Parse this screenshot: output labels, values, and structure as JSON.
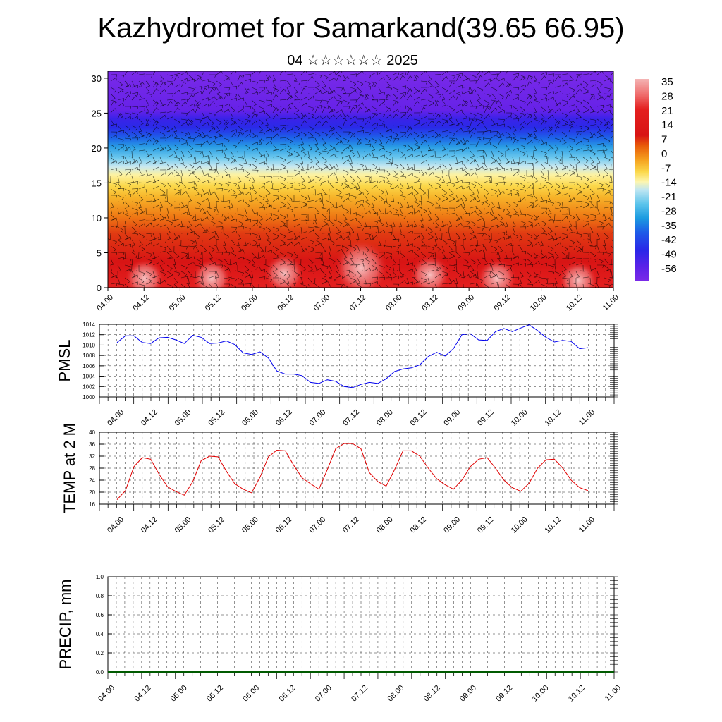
{
  "title": "Kazhydromet for Samarkand(39.65 66.95)",
  "subtitle": "04 ☆☆☆☆☆☆ 2025",
  "time_labels": [
    "04.00",
    "04.12",
    "05.00",
    "05.12",
    "06.00",
    "06.12",
    "07.00",
    "07.12",
    "08.00",
    "08.12",
    "09.00",
    "09.12",
    "10.00",
    "10.12",
    "11.00"
  ],
  "chart_data": [
    {
      "type": "heatmap",
      "name": "cross-section",
      "title": "",
      "xlabel": "",
      "ylabel": "",
      "x_ticks": [
        "04.00",
        "04.12",
        "05.00",
        "05.12",
        "06.00",
        "06.12",
        "07.00",
        "07.12",
        "08.00",
        "08.12",
        "09.00",
        "09.12",
        "10.00",
        "10.12",
        "11.00"
      ],
      "ylim": [
        0,
        31
      ],
      "y_ticks": [
        0,
        5,
        10,
        15,
        20,
        25,
        30
      ],
      "colorbar_labels": [
        35,
        28,
        21,
        14,
        7,
        0,
        -7,
        -14,
        -21,
        -28,
        -35,
        -42,
        -49,
        -56
      ],
      "colormap": [
        "#f4b4b4",
        "#ef6a6a",
        "#e41f1f",
        "#d61010",
        "#e85a0a",
        "#f5a01e",
        "#fbd84a",
        "#fdf6b0",
        "#bfe6f2",
        "#5cc4ec",
        "#1c9be0",
        "#1d5ce8",
        "#2a26e8",
        "#5a22e8",
        "#7a2ae8"
      ],
      "overlay": "wind barbs",
      "approx_profile": [
        {
          "height": 0,
          "value": 25
        },
        {
          "height": 5,
          "value": 18
        },
        {
          "height": 10,
          "value": 8
        },
        {
          "height": 15,
          "value": -10
        },
        {
          "height": 18,
          "value": -25
        },
        {
          "height": 21,
          "value": -45
        },
        {
          "height": 24,
          "value": -57
        },
        {
          "height": 31,
          "value": -55
        }
      ]
    },
    {
      "type": "line",
      "name": "pmsl",
      "ylabel": "PMSL",
      "ylim": [
        1000,
        1014
      ],
      "y_ticks": [
        1000,
        1002,
        1004,
        1006,
        1008,
        1010,
        1012,
        1014
      ],
      "color": "#0000ee",
      "values": [
        1010.5,
        1011.8,
        1011.8,
        1010.5,
        1010.3,
        1011.4,
        1011.5,
        1011.0,
        1010.3,
        1011.9,
        1011.5,
        1010.3,
        1010.4,
        1010.8,
        1010.1,
        1008.5,
        1008.2,
        1008.7,
        1007.5,
        1005.0,
        1004.4,
        1004.4,
        1004.1,
        1002.8,
        1002.6,
        1003.3,
        1003.0,
        1002.0,
        1001.8,
        1002.4,
        1002.8,
        1002.6,
        1003.5,
        1004.9,
        1005.4,
        1005.6,
        1006.2,
        1007.8,
        1008.6,
        1007.9,
        1009.3,
        1012.0,
        1012.2,
        1011.0,
        1010.9,
        1012.6,
        1013.2,
        1012.6,
        1013.3,
        1013.9,
        1012.8,
        1011.5,
        1010.6,
        1010.9,
        1010.7,
        1009.3,
        1009.5
      ]
    },
    {
      "type": "line",
      "name": "temp",
      "ylabel": "TEMP at 2 M",
      "ylim": [
        16,
        40
      ],
      "y_ticks": [
        16,
        20,
        24,
        28,
        32,
        36,
        40
      ],
      "color": "#e00000",
      "values": [
        17.5,
        20.5,
        28.5,
        31.5,
        31.0,
        26.0,
        21.8,
        20.2,
        19.0,
        23.5,
        30.5,
        32.0,
        31.8,
        27.0,
        22.8,
        21.0,
        19.8,
        25.0,
        31.8,
        34.0,
        33.8,
        29.0,
        24.8,
        22.8,
        21.0,
        27.5,
        34.5,
        36.2,
        36.2,
        34.5,
        26.5,
        23.5,
        22.0,
        27.5,
        33.8,
        33.8,
        32.0,
        28.0,
        24.5,
        22.5,
        21.0,
        24.0,
        28.5,
        31.0,
        31.5,
        28.0,
        24.0,
        21.5,
        20.3,
        23.0,
        28.0,
        30.8,
        31.0,
        28.0,
        24.0,
        21.5,
        20.5
      ]
    },
    {
      "type": "line",
      "name": "precip",
      "ylabel": "PRECIP, mm",
      "ylim": [
        0,
        1
      ],
      "y_ticks": [
        "0.0",
        "0.2",
        "0.4",
        "0.6",
        "0.8",
        "1.0"
      ],
      "color": "#005a00",
      "values": [
        0,
        0,
        0,
        0,
        0,
        0,
        0,
        0,
        0,
        0,
        0,
        0,
        0,
        0,
        0,
        0,
        0,
        0,
        0,
        0,
        0,
        0,
        0,
        0,
        0,
        0,
        0,
        0,
        0,
        0,
        0,
        0,
        0,
        0,
        0,
        0,
        0,
        0,
        0,
        0,
        0,
        0,
        0,
        0,
        0,
        0,
        0,
        0,
        0,
        0,
        0,
        0,
        0,
        0,
        0,
        0,
        0
      ]
    }
  ]
}
